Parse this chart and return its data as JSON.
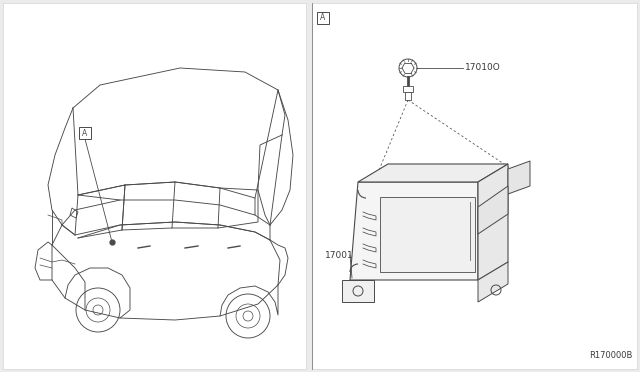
{
  "bg_color": "#ebebeb",
  "panel_bg": "#ffffff",
  "line_color": "#4a4a4a",
  "text_color": "#3a3a3a",
  "ref_code": "R170000B",
  "label_A": "A",
  "part_17010O": "17010O",
  "part_17001": "17001",
  "font_size_label": 6.5,
  "font_size_ref": 6.0,
  "font_size_box": 6.0
}
